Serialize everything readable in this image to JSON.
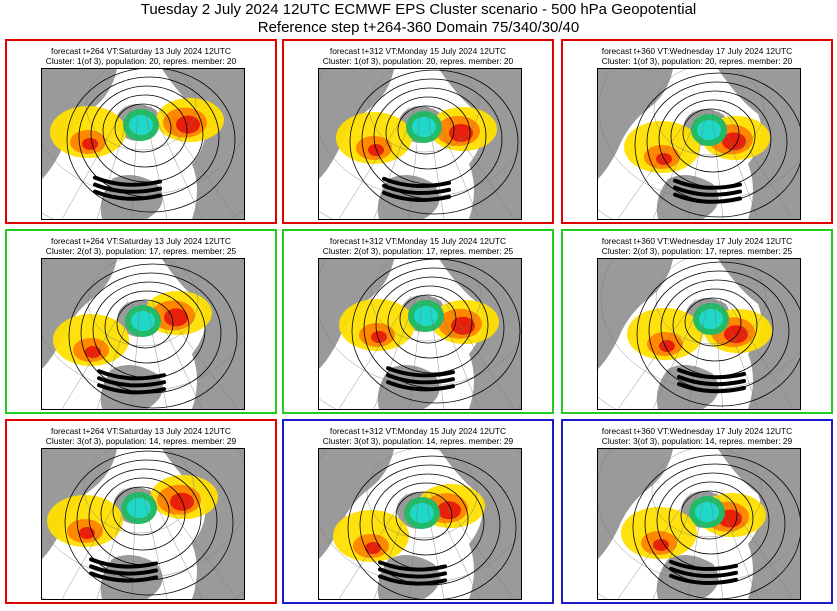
{
  "header": {
    "title": "Tuesday 2 July 2024 12UTC ECMWF EPS Cluster scenario - 500 hPa Geopotential",
    "subtitle": "Reference step t+264-360 Domain 75/340/30/40"
  },
  "colors": {
    "red_border": "#e00000",
    "green_border": "#22cc22",
    "blue_border": "#1a1acc",
    "land": "#9a9a9a",
    "anomaly_yellow": "#ffe000",
    "anomaly_orange": "#ff8800",
    "anomaly_red": "#e8200a",
    "anomaly_cyan": "#20d8c8",
    "anomaly_green": "#22bb66"
  },
  "panels": [
    {
      "forecast": "forecast t+264 VT:Saturday 13 July 2024 12UTC",
      "cluster": "Cluster: 1(of 3), population: 20, repres. member: 20",
      "border": "red"
    },
    {
      "forecast": "forecast t+312 VT:Monday 15 July 2024 12UTC",
      "cluster": "Cluster: 1(of 3), population: 20, repres. member: 20",
      "border": "red"
    },
    {
      "forecast": "forecast t+360 VT:Wednesday 17 July 2024 12UTC",
      "cluster": "Cluster: 1(of 3), population: 20, repres. member: 20",
      "border": "red"
    },
    {
      "forecast": "forecast t+264 VT:Saturday 13 July 2024 12UTC",
      "cluster": "Cluster: 2(of 3), population: 17, repres. member: 25",
      "border": "green"
    },
    {
      "forecast": "forecast t+312 VT:Monday 15 July 2024 12UTC",
      "cluster": "Cluster: 2(of 3), population: 17, repres. member: 25",
      "border": "green"
    },
    {
      "forecast": "forecast t+360 VT:Wednesday 17 July 2024 12UTC",
      "cluster": "Cluster: 2(of 3), population: 17, repres. member: 25",
      "border": "green"
    },
    {
      "forecast": "forecast t+264 VT:Saturday 13 July 2024 12UTC",
      "cluster": "Cluster: 3(of 3), population: 14, repres. member: 29",
      "border": "red"
    },
    {
      "forecast": "forecast t+312 VT:Monday 15 July 2024 12UTC",
      "cluster": "Cluster: 3(of 3), population: 14, repres. member: 29",
      "border": "blue"
    },
    {
      "forecast": "forecast t+360 VT:Wednesday 17 July 2024 12UTC",
      "cluster": "Cluster: 3(of 3), population: 14, repres. member: 29",
      "border": "blue"
    }
  ]
}
